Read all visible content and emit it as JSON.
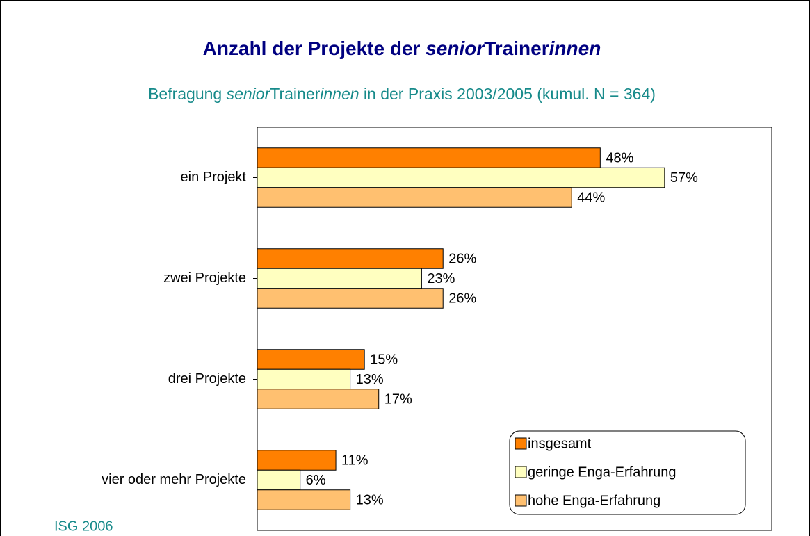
{
  "chart_data": {
    "type": "hbar",
    "title": [
      {
        "text": "Anzahl der Projekte der "
      },
      {
        "text": "senior",
        "style": "italic"
      },
      {
        "text": "Trainer"
      },
      {
        "text": "innen",
        "style": "italic"
      }
    ],
    "subtitle": [
      {
        "text": "Befragung "
      },
      {
        "text": "senior",
        "style": "italic"
      },
      {
        "text": "Trainer"
      },
      {
        "text": "innen",
        "style": "italic"
      },
      {
        "text": " in der Praxis 2003/2005 (kumul. N = 364)"
      }
    ],
    "categories": [
      "ein Projekt",
      "zwei Projekte",
      "drei Projekte",
      "vier oder mehr Projekte"
    ],
    "series": [
      {
        "name": "insgesamt",
        "color": "#ff8000",
        "values": [
          48,
          26,
          15,
          11
        ],
        "value_labels": [
          "48%",
          "26%",
          "15%",
          "11%"
        ]
      },
      {
        "name": "geringe Enga-Erfahrung",
        "color": "#ffffc0",
        "values": [
          57,
          23,
          13,
          6
        ],
        "value_labels": [
          "57%",
          "23%",
          "13%",
          "6%"
        ]
      },
      {
        "name": "hohe Enga-Erfahrung",
        "color": "#ffc070",
        "values": [
          44,
          26,
          17,
          13
        ],
        "value_labels": [
          "44%",
          "26%",
          "17%",
          "13%"
        ]
      }
    ],
    "xlim": [
      0,
      72
    ],
    "legend": "lower right",
    "source": "ISG 2006"
  }
}
